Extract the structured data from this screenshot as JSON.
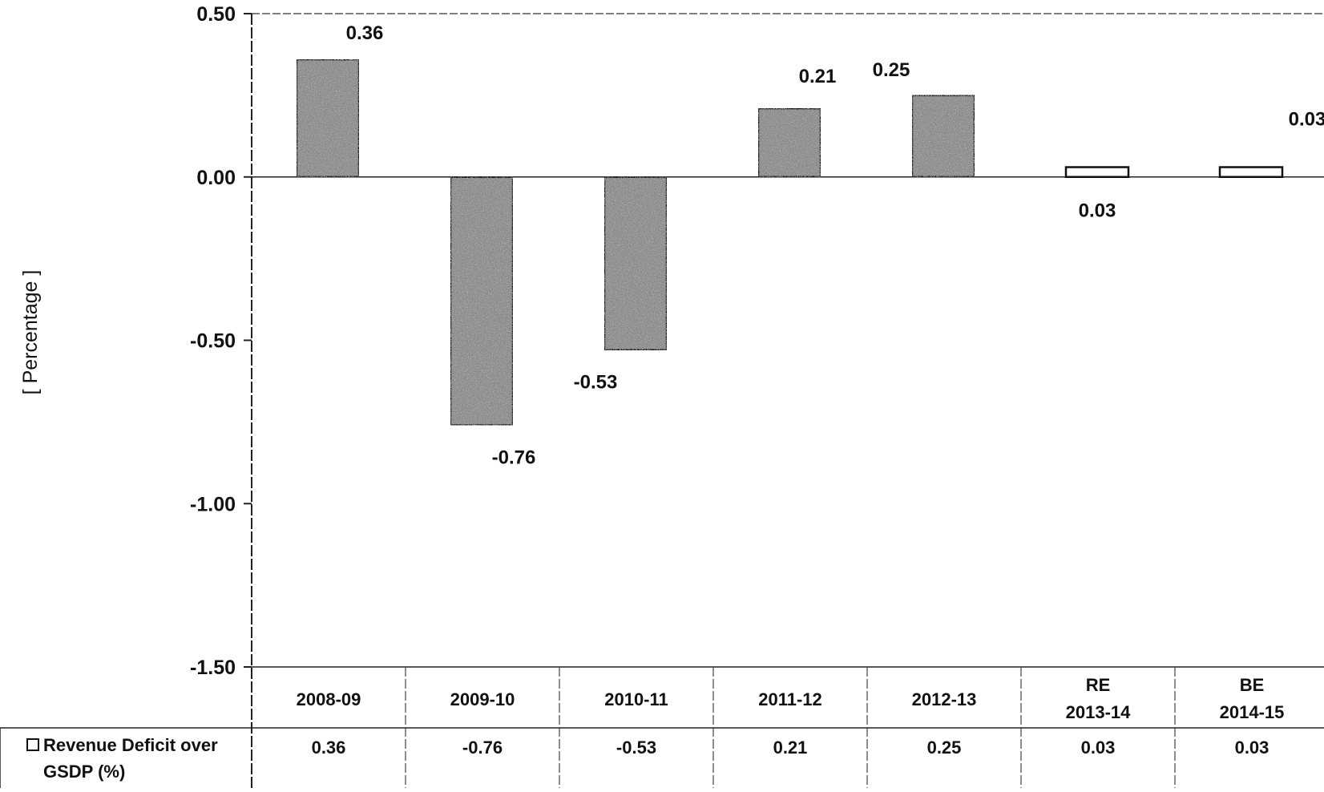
{
  "chart_data": {
    "type": "bar",
    "title": "",
    "xlabel": "",
    "ylabel": "[ Percentage ]",
    "ylim": [
      -1.5,
      0.5
    ],
    "yticks": [
      0.5,
      0.0,
      -0.5,
      -1.0,
      -1.5
    ],
    "ytick_labels": [
      "0.50",
      "0.00",
      "-0.50",
      "-1.00",
      "-1.50"
    ],
    "categories": [
      [
        "2008-09"
      ],
      [
        "2009-10"
      ],
      [
        "2010-11"
      ],
      [
        "2011-12"
      ],
      [
        "2012-13"
      ],
      [
        "RE",
        "2013-14"
      ],
      [
        "BE",
        "2014-15"
      ]
    ],
    "series": [
      {
        "name": "Revenue Deficit over GSDP (%)",
        "legend_lines": [
          "Revenue Deficit over",
          "GSDP (%)"
        ],
        "values": [
          0.36,
          -0.76,
          -0.53,
          0.21,
          0.25,
          0.03,
          0.03
        ],
        "value_labels": [
          "0.36",
          "-0.76",
          "-0.53",
          "0.21",
          "0.25",
          "0.03",
          "0.03"
        ],
        "table_labels": [
          "0.36",
          "-0.76",
          "-0.53",
          "0.21",
          "0.25",
          "0.03",
          "0.03"
        ]
      }
    ],
    "grid": false,
    "legend": "data-table-left",
    "colors": {
      "bar_dark": "#8a8a8a",
      "bar_light": "#ffffff",
      "axis": "#222222"
    }
  }
}
